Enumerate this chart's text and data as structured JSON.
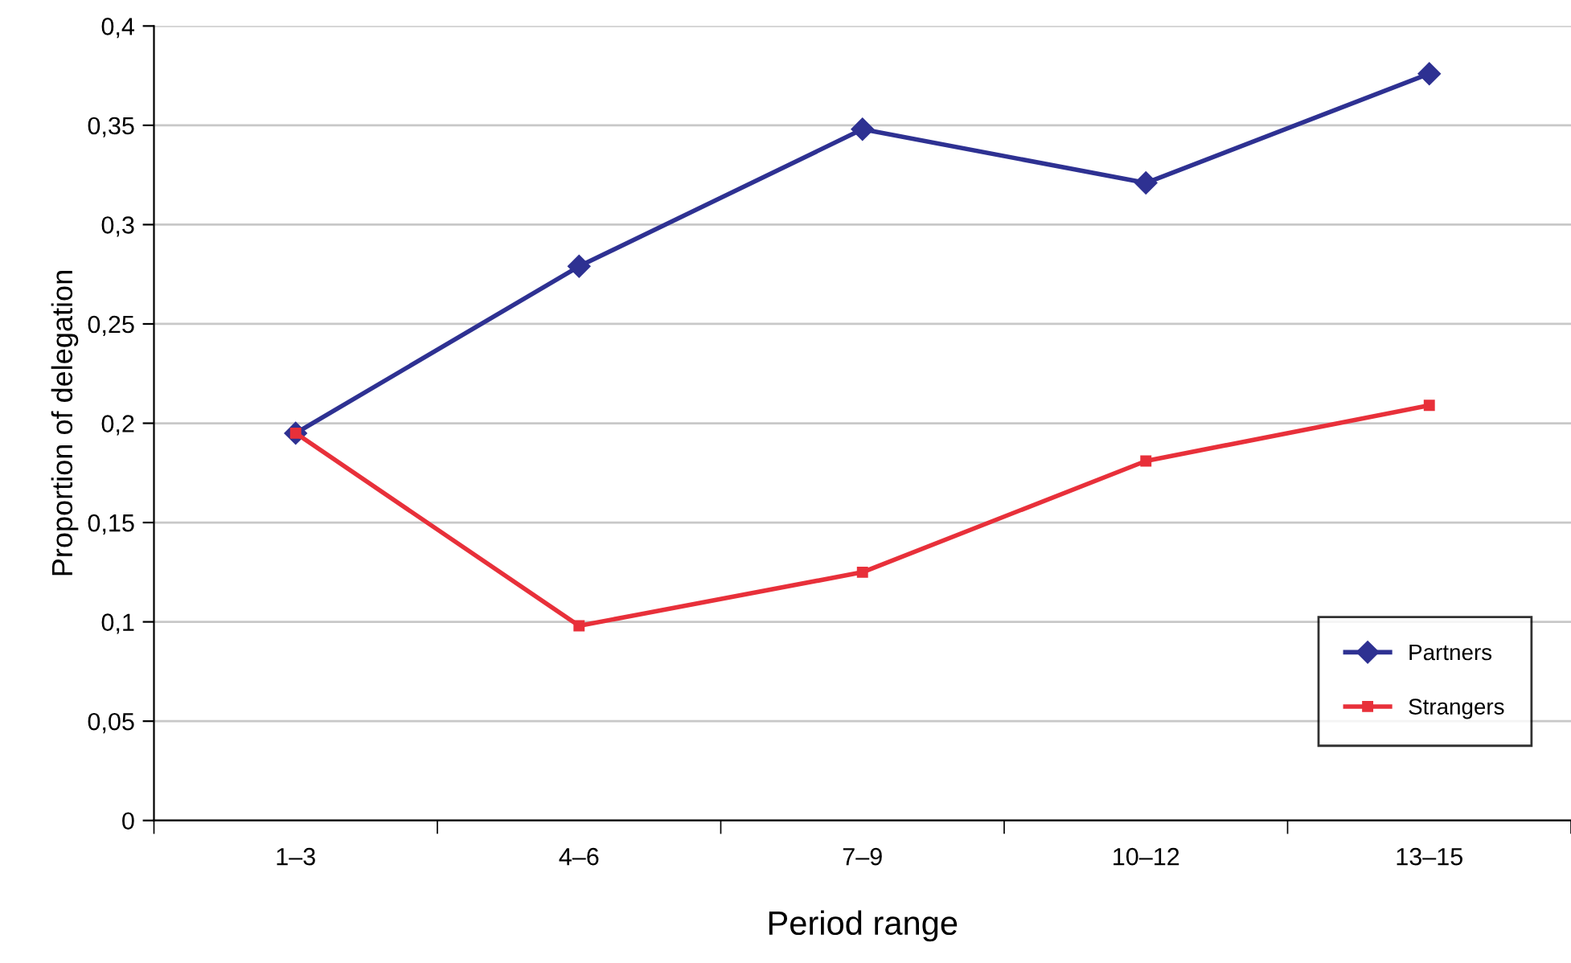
{
  "chart_data": {
    "type": "line",
    "xlabel": "Period range",
    "ylabel": "Proportion of delegation",
    "categories": [
      "1–3",
      "4–6",
      "7–9",
      "10–12",
      "13–15"
    ],
    "series": [
      {
        "name": "Partners",
        "color": "#2e3192",
        "marker": "diamond",
        "values": [
          0.195,
          0.279,
          0.348,
          0.321,
          0.376
        ]
      },
      {
        "name": "Strangers",
        "color": "#e8303a",
        "marker": "square",
        "values": [
          0.195,
          0.098,
          0.125,
          0.181,
          0.209
        ]
      }
    ],
    "ylim": [
      0,
      0.4
    ],
    "yticks": [
      0,
      {
        "value": 0.05,
        "label": "0,05"
      },
      {
        "value": 0.1,
        "label": "0,1"
      },
      {
        "value": 0.15,
        "label": "0,15"
      },
      {
        "value": 0.2,
        "label": "0,2"
      },
      {
        "value": 0.25,
        "label": "0,25"
      },
      {
        "value": 0.3,
        "label": "0,3"
      },
      {
        "value": 0.35,
        "label": "0,35"
      },
      {
        "value": 0.4,
        "label": "0,4"
      }
    ],
    "grid": "y",
    "legend": "lower right",
    "line_style": "solid"
  }
}
